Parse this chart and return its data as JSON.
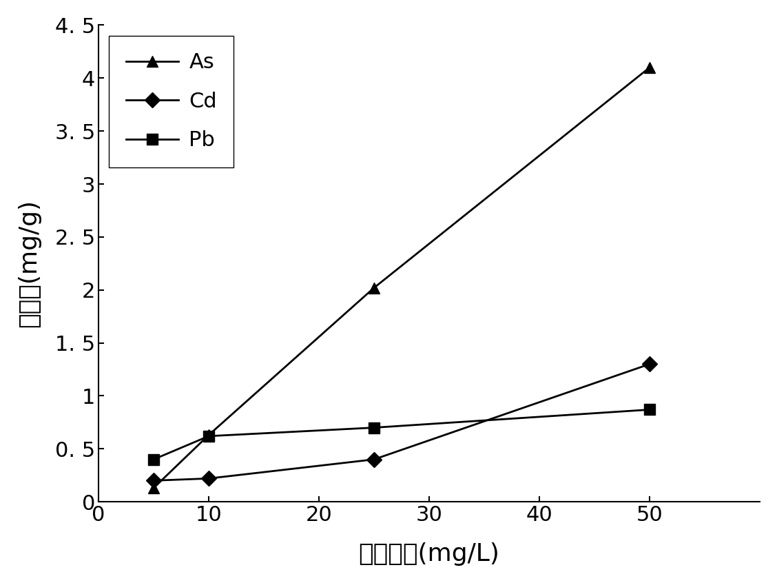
{
  "x": [
    5,
    10,
    25,
    50
  ],
  "As": [
    0.13,
    0.63,
    2.02,
    4.1
  ],
  "Cd": [
    0.2,
    0.22,
    0.4,
    1.3
  ],
  "Pb": [
    0.4,
    0.62,
    0.7,
    0.87
  ],
  "xlabel": "溶液浓度(mg/L)",
  "ylabel": "吸附量(mg/g)",
  "xlim": [
    0,
    60
  ],
  "ylim": [
    0,
    4.5
  ],
  "xticks": [
    0,
    10,
    20,
    30,
    40,
    50
  ],
  "yticks": [
    0,
    0.5,
    1.0,
    1.5,
    2.0,
    2.5,
    3.0,
    3.5,
    4.0,
    4.5
  ],
  "ytick_labels": [
    "0",
    "0. 5",
    "1",
    "1. 5",
    "2",
    "2. 5",
    "3",
    "3. 5",
    "4",
    "4. 5"
  ],
  "xtick_labels": [
    "0",
    "10",
    "20",
    "30",
    "40",
    "50"
  ],
  "line_color": "#000000",
  "marker_As": "^",
  "marker_Cd": "D",
  "marker_Pb": "s",
  "markersize": 11,
  "linewidth": 2.0,
  "legend_labels": [
    "As",
    "Cd",
    "Pb"
  ],
  "legend_loc": "upper left",
  "font_size_labels": 26,
  "font_size_ticks": 22,
  "font_size_legend": 22,
  "background_color": "#ffffff"
}
